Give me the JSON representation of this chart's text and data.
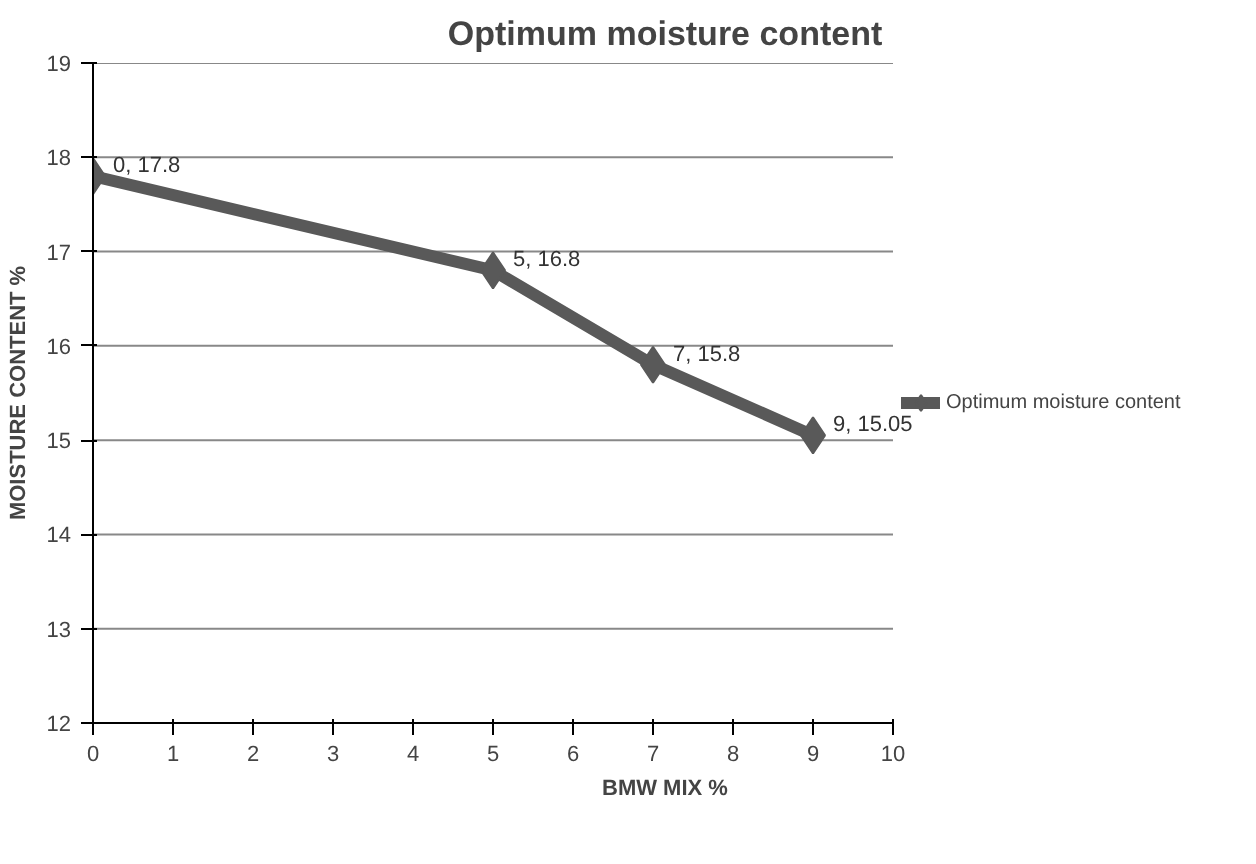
{
  "chart_data": {
    "type": "line",
    "title": "Optimum moisture content",
    "xlabel": "BMW MIX %",
    "ylabel": "MOISTURE CONTENT %",
    "x": [
      0,
      5,
      7,
      9
    ],
    "series": [
      {
        "name": "Optimum moisture content",
        "color": "#595959",
        "values": [
          17.8,
          16.8,
          15.8,
          15.05
        ],
        "value_labels": [
          "0, 17.8",
          "5, 16.8",
          "7, 15.8",
          "9, 15.05"
        ]
      }
    ],
    "xlim": [
      0,
      10
    ],
    "xticks": [
      0,
      1,
      2,
      3,
      4,
      5,
      6,
      7,
      8,
      9,
      10
    ],
    "ylim": [
      12,
      19
    ],
    "yticks": [
      12,
      13,
      14,
      15,
      16,
      17,
      18,
      19
    ],
    "grid": "y",
    "legend": "right",
    "marker": "diamond",
    "line_style": "solid"
  }
}
